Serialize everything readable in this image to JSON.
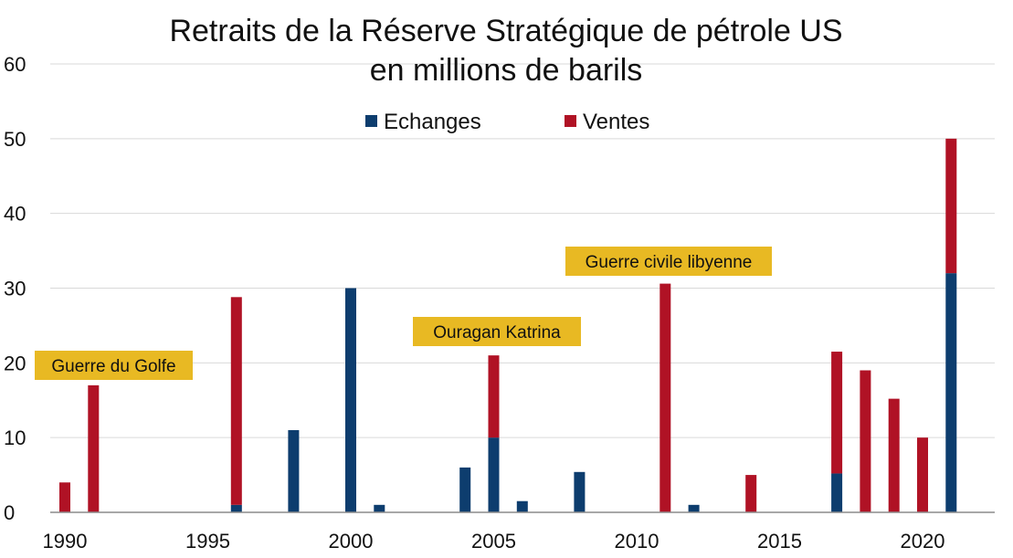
{
  "chart_data": {
    "type": "bar",
    "stacked": true,
    "title_lines": [
      "Retraits de la Réserve Stratégique de pétrole US",
      "en millions de barils"
    ],
    "xlabel": "",
    "ylabel": "",
    "ylim": [
      0,
      60
    ],
    "y_ticks": [
      "0",
      "10",
      "20",
      "30",
      "40",
      "50",
      "60"
    ],
    "x_ticks": [
      "1990",
      "1995",
      "2000",
      "2005",
      "2010",
      "2015",
      "2020"
    ],
    "grid": true,
    "legend_position": "top",
    "x": [
      1990,
      1991,
      1996,
      1998,
      2000,
      2001,
      2004,
      2005,
      2006,
      2008,
      2011,
      2012,
      2014,
      2017,
      2018,
      2019,
      2020,
      2021
    ],
    "series": [
      {
        "name": "Echanges",
        "color": "#0d3d6e",
        "values": [
          0,
          0,
          1,
          11,
          30,
          1,
          6,
          10,
          1.5,
          5.4,
          0,
          1,
          0,
          5.2,
          0,
          0,
          0,
          32
        ]
      },
      {
        "name": "Ventes",
        "color": "#b01225",
        "values": [
          4,
          17,
          27.8,
          0,
          0,
          0,
          0,
          11,
          0,
          0,
          30.6,
          0,
          5,
          16.3,
          19,
          15.2,
          10,
          18
        ]
      }
    ],
    "annotations": [
      {
        "text": "Guerre du Golfe",
        "year": 1990
      },
      {
        "text": "Ouragan Katrina",
        "year": 2005
      },
      {
        "text": "Guerre civile libyenne",
        "year": 2011
      }
    ],
    "annotation_color": "#e8b923"
  }
}
